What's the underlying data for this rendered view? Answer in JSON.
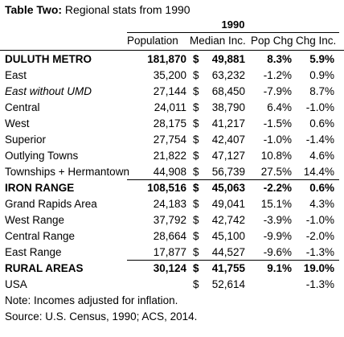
{
  "title": {
    "bold": "Table Two:",
    "rest": " Regional stats from 1990"
  },
  "year_header": "1990",
  "columns": [
    "Population",
    "Median Inc.",
    "Pop Chg",
    "Chg Inc."
  ],
  "rows": [
    {
      "label": "DULUTH METRO",
      "pop": "181,870",
      "dollar": "$",
      "median": "49,881",
      "pop_chg": "8.3%",
      "chg_inc": "5.9%"
    },
    {
      "label": "East",
      "pop": "35,200",
      "dollar": "$",
      "median": "63,232",
      "pop_chg": "-1.2%",
      "chg_inc": "0.9%"
    },
    {
      "label": "East without UMD",
      "pop": "27,144",
      "dollar": "$",
      "median": "68,450",
      "pop_chg": "-7.9%",
      "chg_inc": "8.7%"
    },
    {
      "label": "Central",
      "pop": "24,011",
      "dollar": "$",
      "median": "38,790",
      "pop_chg": "6.4%",
      "chg_inc": "-1.0%"
    },
    {
      "label": "West",
      "pop": "28,175",
      "dollar": "$",
      "median": "41,217",
      "pop_chg": "-1.5%",
      "chg_inc": "0.6%"
    },
    {
      "label": "Superior",
      "pop": "27,754",
      "dollar": "$",
      "median": "42,407",
      "pop_chg": "-1.0%",
      "chg_inc": "-1.4%"
    },
    {
      "label": "Outlying Towns",
      "pop": "21,822",
      "dollar": "$",
      "median": "47,127",
      "pop_chg": "10.8%",
      "chg_inc": "4.6%"
    },
    {
      "label": "Townships + Hermantown",
      "pop": "44,908",
      "dollar": "$",
      "median": "56,739",
      "pop_chg": "27.5%",
      "chg_inc": "14.4%"
    },
    {
      "label": "IRON RANGE",
      "pop": "108,516",
      "dollar": "$",
      "median": "45,063",
      "pop_chg": "-2.2%",
      "chg_inc": "0.6%"
    },
    {
      "label": "Grand Rapids Area",
      "pop": "24,183",
      "dollar": "$",
      "median": "49,041",
      "pop_chg": "15.1%",
      "chg_inc": "4.3%"
    },
    {
      "label": "West Range",
      "pop": "37,792",
      "dollar": "$",
      "median": "42,742",
      "pop_chg": "-3.9%",
      "chg_inc": "-1.0%"
    },
    {
      "label": "Central Range",
      "pop": "28,664",
      "dollar": "$",
      "median": "45,100",
      "pop_chg": "-9.9%",
      "chg_inc": "-2.0%"
    },
    {
      "label": "East Range",
      "pop": "17,877",
      "dollar": "$",
      "median": "44,527",
      "pop_chg": "-9.6%",
      "chg_inc": "-1.3%"
    },
    {
      "label": "RURAL AREAS",
      "pop": "30,124",
      "dollar": "$",
      "median": "41,755",
      "pop_chg": "9.1%",
      "chg_inc": "19.0%"
    },
    {
      "label": "USA",
      "pop": "",
      "dollar": "$",
      "median": "52,614",
      "pop_chg": "",
      "chg_inc": "-1.3%"
    }
  ],
  "notes": [
    "Note: Incomes adjusted for inflation.",
    "Source: U.S. Census, 1990; ACS, 2014."
  ]
}
